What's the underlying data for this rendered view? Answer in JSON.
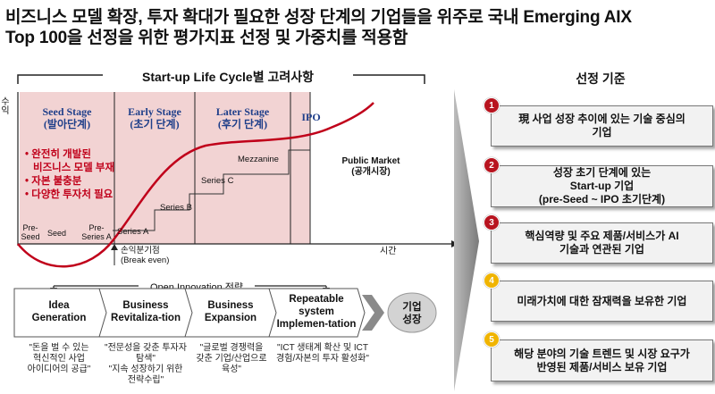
{
  "header": {
    "line1": "비즈니스 모델 확장, 투자 확대가 필요한 성장 단계의 기업들을 위주로 국내 Emerging AIX",
    "line2": "Top 100을 선정을 위한 평가지표 선정 및 가중치를 적용함"
  },
  "lifecycle": {
    "title": "Start-up Life Cycle별 고려사항",
    "y_axis_label": "수익",
    "x_axis_label": "시간",
    "stages": [
      {
        "name": "Seed Stage",
        "sub": "(발아단계)"
      },
      {
        "name": "Early Stage",
        "sub": "(초기 단계)"
      },
      {
        "name": "Later Stage",
        "sub": "(후기 단계)"
      },
      {
        "name": "IPO",
        "sub": ""
      }
    ],
    "notes": [
      "완전히 개발된",
      "비즈니스 모델 부재",
      "자본 불충분",
      "다양한 투자처 필요"
    ],
    "bullet": "•",
    "public_market": [
      "Public Market",
      "(공개시장)"
    ],
    "series": {
      "pre_seed": [
        "Pre-",
        "Seed"
      ],
      "seed": "Seed",
      "pre_series_a": [
        "Pre-",
        "Series A"
      ],
      "series_a": "Series A",
      "series_b": "Series B",
      "series_c": "Series C",
      "mezzanine": "Mezzanine"
    },
    "break_even": [
      "손익분기점",
      "(Break even)"
    ],
    "colors": {
      "stage_bg": "#f2d3d3",
      "curve": "#c0001a",
      "stage_title": "#1f3f8a",
      "note": "#c0001a"
    }
  },
  "innovation": {
    "title": "Open Innovation 전략",
    "phases": [
      {
        "lines": [
          "Idea",
          "Generation"
        ]
      },
      {
        "lines": [
          "Business",
          "Revitaliza-tion"
        ]
      },
      {
        "lines": [
          "Business",
          "Expansion"
        ]
      },
      {
        "lines": [
          "Repeatable",
          "system",
          "Implemen-tation"
        ]
      }
    ],
    "quotes": [
      "\"돈을 벌 수 있는\n혁신적인 사업\n아이디어의 공급\"",
      "\"전문성을 갖춘 투자자\n탐색\"\n\"지속 성장하기 위한\n전략수립\"",
      "\"글로벌 경쟁력을\n갖춘 기업/산업으로\n육성\"",
      "\"ICT 생태계 확산 및 ICT\n경험/자본의 투자 활성화\""
    ],
    "result": [
      "기업",
      "성장"
    ]
  },
  "criteria": {
    "title": "선정 기준",
    "items": [
      {
        "num": "1",
        "lines": [
          "現 사업 성장 추이에 있는 기술 중심의",
          "기업"
        ],
        "color": "#b8141f"
      },
      {
        "num": "2",
        "lines": [
          "성장 초기 단계에 있는",
          "Start-up 기업",
          "(pre-Seed ~ IPO 초기단계)"
        ],
        "color": "#b8141f"
      },
      {
        "num": "3",
        "lines": [
          "핵심역량 및 주요 제품/서비스가 AI",
          "기술과 연관된 기업"
        ],
        "color": "#b8141f"
      },
      {
        "num": "4",
        "lines": [
          "미래가치에 대한 잠재력을  보유한 기업"
        ],
        "color": "#f0b400"
      },
      {
        "num": "5",
        "lines": [
          "해당 분야의 기술 트렌드 및 시장 요구가",
          "반영된 제품/서비스 보유 기업"
        ],
        "color": "#f0b400"
      }
    ]
  }
}
